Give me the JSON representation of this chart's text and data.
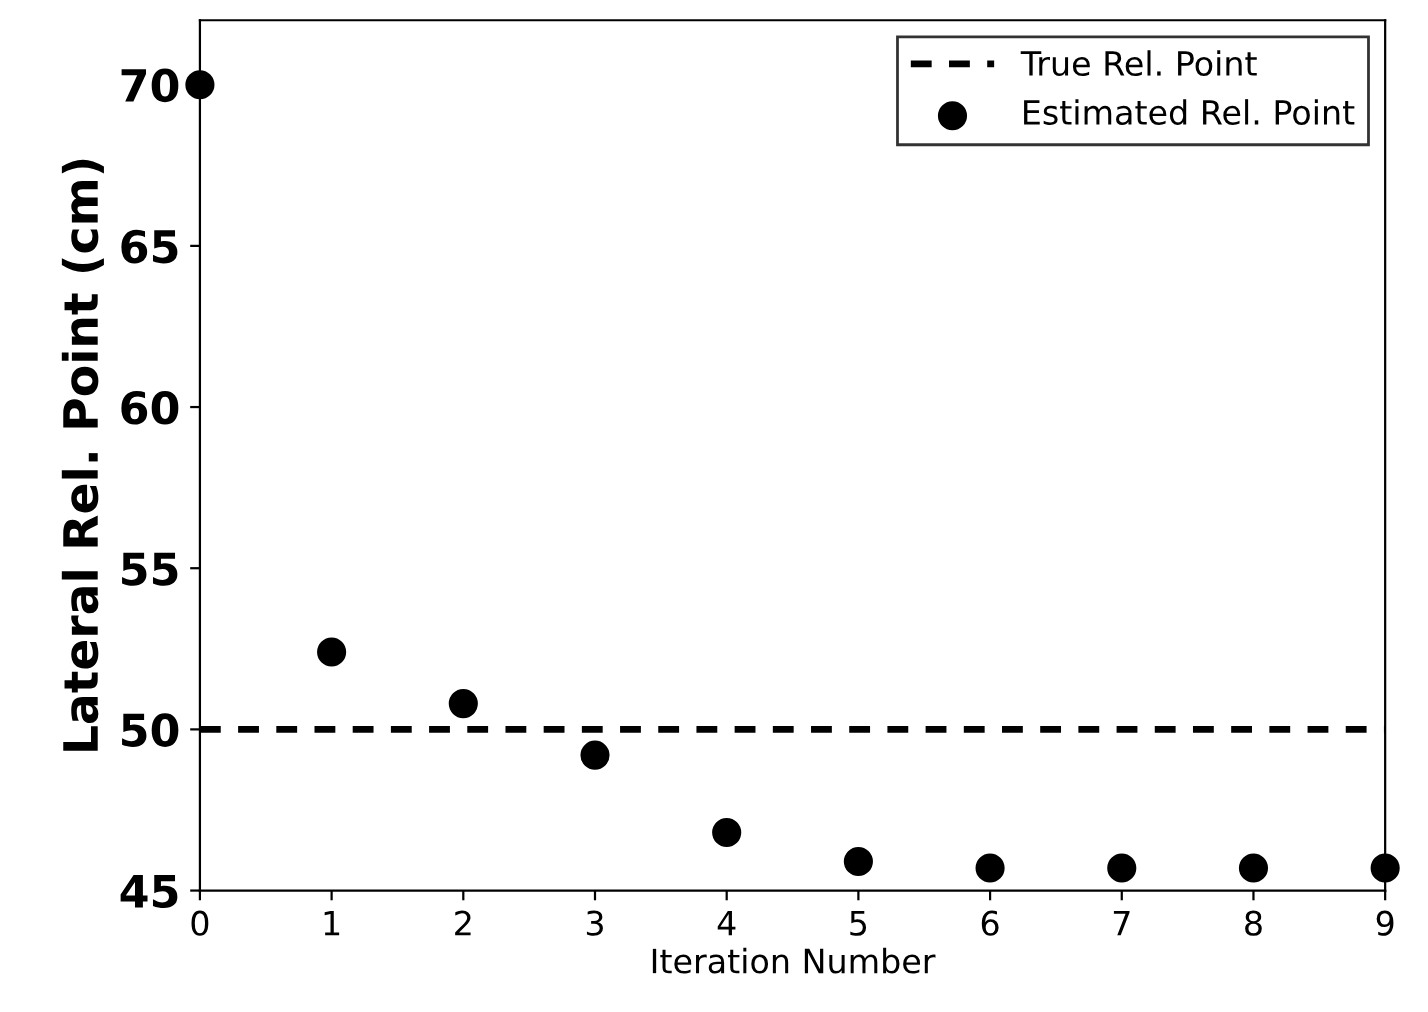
{
  "chart_data": {
    "type": "scatter",
    "xlabel": "Iteration Number",
    "ylabel": "Lateral Rel. Point (cm)",
    "x": [
      0,
      1,
      2,
      3,
      4,
      5,
      6,
      7,
      8,
      9
    ],
    "series": [
      {
        "name": "Estimated Rel. Point",
        "color": "#000000",
        "values": [
          70,
          52.4,
          50.8,
          49.2,
          46.8,
          45.9,
          45.7,
          45.7,
          45.7,
          45.7
        ]
      }
    ],
    "ref_lines": [
      {
        "axis": "y",
        "value": 50,
        "label": "True Rel. Point",
        "color": "#000000",
        "line_style": "dashed"
      }
    ],
    "xlim": [
      0,
      9
    ],
    "ylim": [
      45,
      72
    ],
    "xticks": [
      0,
      1,
      2,
      3,
      4,
      5,
      6,
      7,
      8,
      9
    ],
    "yticks": [
      45,
      50,
      55,
      60,
      65,
      70
    ],
    "marker": "circle",
    "grid": false,
    "legend": "top right"
  }
}
